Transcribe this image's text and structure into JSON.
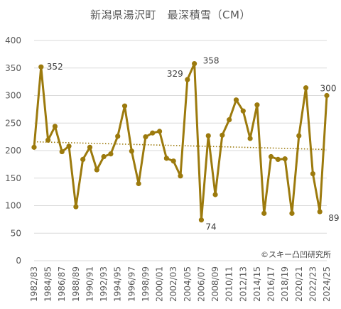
{
  "chart_data": {
    "type": "line",
    "title": "新潟県湯沢町　最深積雪（CM）",
    "xlabel": "",
    "ylabel": "",
    "ylim": [
      0,
      400
    ],
    "yticks": [
      0,
      50,
      100,
      150,
      200,
      250,
      300,
      350,
      400
    ],
    "grid": true,
    "legend": "none",
    "x": [
      "1982/83",
      "1983/84",
      "1984/85",
      "1985/86",
      "1986/87",
      "1987/88",
      "1988/89",
      "1989/90",
      "1990/91",
      "1991/92",
      "1992/93",
      "1993/94",
      "1994/95",
      "1995/96",
      "1996/97",
      "1997/98",
      "1998/99",
      "1999/00",
      "2000/01",
      "2001/02",
      "2002/03",
      "2003/04",
      "2004/05",
      "2005/06",
      "2006/07",
      "2007/08",
      "2008/09",
      "2009/10",
      "2010/11",
      "2011/12",
      "2012/13",
      "2013/14",
      "2014/15",
      "2015/16",
      "2016/17",
      "2017/18",
      "2018/19",
      "2019/20",
      "2020/21",
      "2021/22",
      "2022/23",
      "2023/24",
      "2024/25"
    ],
    "xticks": [
      "1982/83",
      "1984/85",
      "1986/87",
      "1988/89",
      "1990/91",
      "1992/93",
      "1994/95",
      "1996/97",
      "1998/99",
      "2000/01",
      "2002/03",
      "2004/05",
      "2006/07",
      "2008/09",
      "2010/11",
      "2012/13",
      "2014/15",
      "2016/17",
      "2018/19",
      "2020/21",
      "2022/23",
      "2024/25"
    ],
    "series": [
      {
        "values": [
          206,
          352,
          219,
          244,
          198,
          208,
          98,
          184,
          206,
          165,
          189,
          194,
          226,
          281,
          199,
          140,
          225,
          232,
          235,
          186,
          181,
          154,
          329,
          358,
          74,
          227,
          120,
          228,
          256,
          292,
          272,
          222,
          283,
          86,
          189,
          184,
          185,
          86,
          227,
          314,
          158,
          89,
          300
        ],
        "color": "#9C7A0D"
      }
    ],
    "trendline": {
      "start": 216,
      "end": 202,
      "color": "#9C7A0D",
      "style": "dotted"
    },
    "annotations": [
      {
        "index": 1,
        "text": "352"
      },
      {
        "index": 22,
        "text": "329"
      },
      {
        "index": 23,
        "text": "358"
      },
      {
        "index": 24,
        "text": "74"
      },
      {
        "index": 41,
        "text": "89"
      },
      {
        "index": 42,
        "text": "300"
      }
    ],
    "credit": "©スキー凸凹研究所",
    "colors": {
      "grid": "#d9d9d9",
      "axis_text": "#595959",
      "line": "#9C7A0D"
    }
  }
}
